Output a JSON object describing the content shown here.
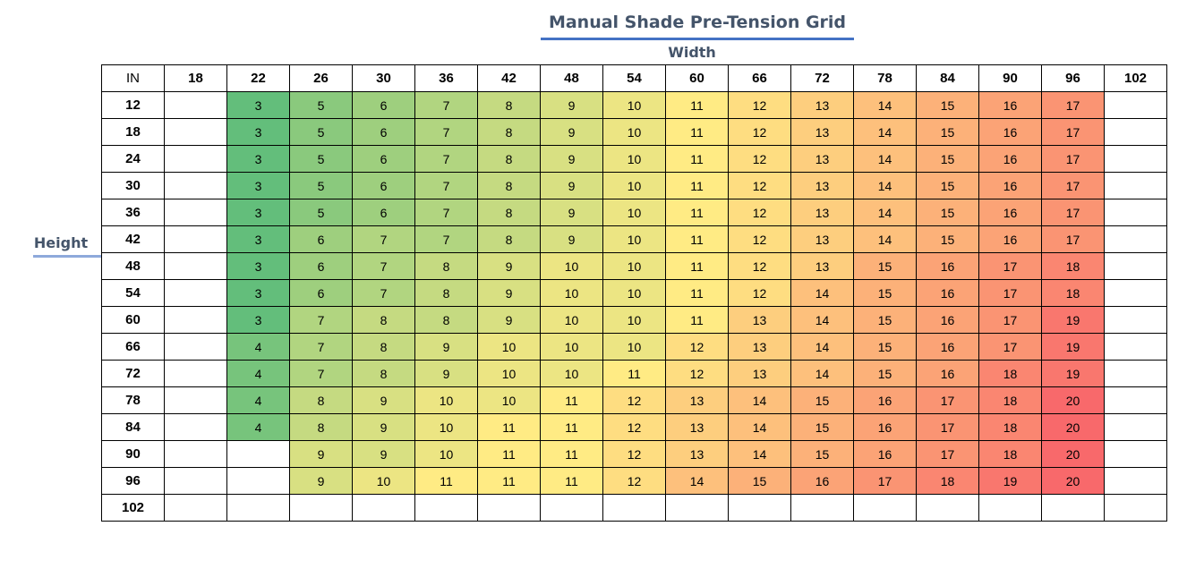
{
  "title": "Manual Shade Pre-Tension Grid",
  "axis_labels": {
    "width": "Width",
    "height": "Height"
  },
  "header": {
    "corner": "IN",
    "widths": [
      "18",
      "22",
      "26",
      "30",
      "36",
      "42",
      "48",
      "54",
      "60",
      "66",
      "72",
      "78",
      "84",
      "90",
      "96",
      "102"
    ]
  },
  "rows": [
    {
      "height": "12",
      "values": [
        "",
        "3",
        "5",
        "6",
        "7",
        "8",
        "9",
        "10",
        "11",
        "12",
        "13",
        "14",
        "15",
        "16",
        "17",
        ""
      ]
    },
    {
      "height": "18",
      "values": [
        "",
        "3",
        "5",
        "6",
        "7",
        "8",
        "9",
        "10",
        "11",
        "12",
        "13",
        "14",
        "15",
        "16",
        "17",
        ""
      ]
    },
    {
      "height": "24",
      "values": [
        "",
        "3",
        "5",
        "6",
        "7",
        "8",
        "9",
        "10",
        "11",
        "12",
        "13",
        "14",
        "15",
        "16",
        "17",
        ""
      ]
    },
    {
      "height": "30",
      "values": [
        "",
        "3",
        "5",
        "6",
        "7",
        "8",
        "9",
        "10",
        "11",
        "12",
        "13",
        "14",
        "15",
        "16",
        "17",
        ""
      ]
    },
    {
      "height": "36",
      "values": [
        "",
        "3",
        "5",
        "6",
        "7",
        "8",
        "9",
        "10",
        "11",
        "12",
        "13",
        "14",
        "15",
        "16",
        "17",
        ""
      ]
    },
    {
      "height": "42",
      "values": [
        "",
        "3",
        "6",
        "7",
        "7",
        "8",
        "9",
        "10",
        "11",
        "12",
        "13",
        "14",
        "15",
        "16",
        "17",
        ""
      ]
    },
    {
      "height": "48",
      "values": [
        "",
        "3",
        "6",
        "7",
        "8",
        "9",
        "10",
        "10",
        "11",
        "12",
        "13",
        "15",
        "16",
        "17",
        "18",
        ""
      ]
    },
    {
      "height": "54",
      "values": [
        "",
        "3",
        "6",
        "7",
        "8",
        "9",
        "10",
        "10",
        "11",
        "12",
        "14",
        "15",
        "16",
        "17",
        "18",
        ""
      ]
    },
    {
      "height": "60",
      "values": [
        "",
        "3",
        "7",
        "8",
        "8",
        "9",
        "10",
        "10",
        "11",
        "13",
        "14",
        "15",
        "16",
        "17",
        "19",
        ""
      ]
    },
    {
      "height": "66",
      "values": [
        "",
        "4",
        "7",
        "8",
        "9",
        "10",
        "10",
        "10",
        "12",
        "13",
        "14",
        "15",
        "16",
        "17",
        "19",
        ""
      ]
    },
    {
      "height": "72",
      "values": [
        "",
        "4",
        "7",
        "8",
        "9",
        "10",
        "10",
        "11",
        "12",
        "13",
        "14",
        "15",
        "16",
        "18",
        "19",
        ""
      ]
    },
    {
      "height": "78",
      "values": [
        "",
        "4",
        "8",
        "9",
        "10",
        "10",
        "11",
        "12",
        "13",
        "14",
        "15",
        "16",
        "17",
        "18",
        "20",
        ""
      ]
    },
    {
      "height": "84",
      "values": [
        "",
        "4",
        "8",
        "9",
        "10",
        "11",
        "11",
        "12",
        "13",
        "14",
        "15",
        "16",
        "17",
        "18",
        "20",
        ""
      ]
    },
    {
      "height": "90",
      "values": [
        "",
        "",
        "9",
        "9",
        "10",
        "11",
        "11",
        "12",
        "13",
        "14",
        "15",
        "16",
        "17",
        "18",
        "20",
        ""
      ]
    },
    {
      "height": "96",
      "values": [
        "",
        "",
        "9",
        "10",
        "11",
        "11",
        "11",
        "12",
        "14",
        "15",
        "16",
        "17",
        "18",
        "19",
        "20",
        ""
      ]
    },
    {
      "height": "102",
      "values": [
        "",
        "",
        "",
        "",
        "",
        "",
        "",
        "",
        "",
        "",
        "",
        "",
        "",
        "",
        "",
        ""
      ]
    }
  ],
  "color_scale": {
    "min_value": 3,
    "mid_value": 11,
    "max_value": 20,
    "min_color": "#63BE7B",
    "mid_color": "#FFEB84",
    "max_color": "#F8696B"
  },
  "colors": {
    "title": "#44546A",
    "title_underline": "#4472C4",
    "height_underline": "#8EA9DB"
  }
}
